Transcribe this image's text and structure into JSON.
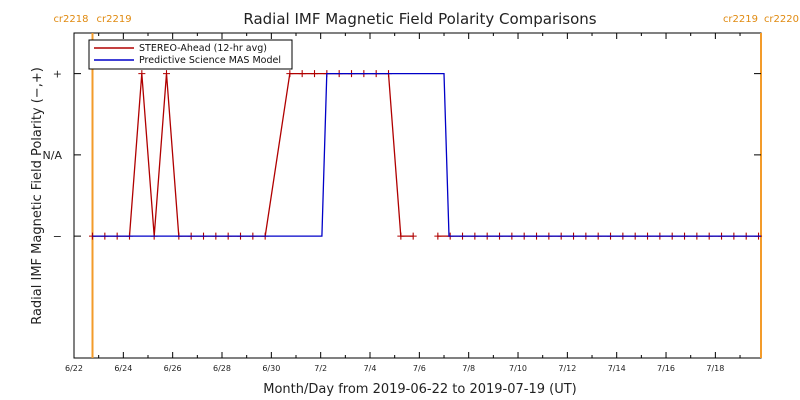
{
  "chart_data": {
    "type": "line",
    "title": "Radial IMF Magnetic Field Polarity Comparisons",
    "xlabel": "Month/Day from 2019-06-22 to 2019-07-19 (UT)",
    "ylabel": "Radial IMF Magnetic Field Polarity (−,+)",
    "x_unit": "days",
    "xlim": [
      0,
      27.85
    ],
    "ylim": [
      -1.5,
      2.5
    ],
    "y_ticks": [
      {
        "value": 0,
        "label": "−"
      },
      {
        "value": 1,
        "label": "N/A"
      },
      {
        "value": 2,
        "label": "+"
      }
    ],
    "x_ticks": [
      {
        "value": 0,
        "label": "6/22"
      },
      {
        "value": 2,
        "label": "6/24"
      },
      {
        "value": 4,
        "label": "6/26"
      },
      {
        "value": 6,
        "label": "6/28"
      },
      {
        "value": 8,
        "label": "6/30"
      },
      {
        "value": 10,
        "label": "7/2"
      },
      {
        "value": 12,
        "label": "7/4"
      },
      {
        "value": 14,
        "label": "7/6"
      },
      {
        "value": 16,
        "label": "7/8"
      },
      {
        "value": 18,
        "label": "7/10"
      },
      {
        "value": 20,
        "label": "7/12"
      },
      {
        "value": 22,
        "label": "7/14"
      },
      {
        "value": 24,
        "label": "7/16"
      },
      {
        "value": 26,
        "label": "7/18"
      }
    ],
    "carrington_markers": [
      {
        "x": 0.75,
        "left_label": "cr2218",
        "right_label": "cr2219"
      },
      {
        "x": 27.85,
        "left_label": "cr2219",
        "right_label": "cr2220"
      }
    ],
    "series": [
      {
        "name": "STEREO-Ahead (12-hr avg)",
        "color": "#b00000",
        "markers": true,
        "x": [
          0.75,
          1.25,
          1.75,
          2.25,
          2.75,
          3.25,
          3.75,
          4.25,
          4.75,
          5.25,
          5.75,
          6.25,
          6.75,
          7.25,
          7.75,
          8.75,
          9.25,
          9.75,
          13.25,
          13.75
        ],
        "y": [
          0,
          0,
          0,
          0,
          2,
          0,
          2,
          0,
          0,
          0,
          0,
          0,
          0,
          0,
          0,
          2,
          2,
          2,
          0,
          0
        ],
        "segments": [
          [
            [
              0.75,
              0
            ],
            [
              1.25,
              0
            ],
            [
              1.75,
              0
            ],
            [
              2.25,
              0
            ],
            [
              2.75,
              2
            ],
            [
              3.25,
              0
            ],
            [
              3.75,
              2
            ],
            [
              4.25,
              0
            ],
            [
              4.75,
              0
            ],
            [
              5.25,
              0
            ],
            [
              5.75,
              0
            ],
            [
              6.25,
              0
            ],
            [
              6.75,
              0
            ],
            [
              7.25,
              0
            ],
            [
              7.75,
              0
            ],
            [
              8.75,
              2
            ],
            [
              9.25,
              2
            ],
            [
              9.75,
              2
            ],
            [
              10.25,
              2
            ],
            [
              10.75,
              2
            ],
            [
              11.25,
              2
            ],
            [
              11.75,
              2
            ],
            [
              12.25,
              2
            ],
            [
              12.75,
              2
            ],
            [
              13.25,
              0
            ],
            [
              13.75,
              0
            ]
          ],
          [
            [
              14.75,
              0
            ],
            [
              15.25,
              0
            ],
            [
              15.75,
              0
            ],
            [
              16.25,
              0
            ],
            [
              16.75,
              0
            ],
            [
              17.25,
              0
            ],
            [
              17.75,
              0
            ],
            [
              18.25,
              0
            ],
            [
              18.75,
              0
            ],
            [
              19.25,
              0
            ],
            [
              19.75,
              0
            ],
            [
              20.25,
              0
            ],
            [
              20.75,
              0
            ],
            [
              21.25,
              0
            ],
            [
              21.75,
              0
            ],
            [
              22.25,
              0
            ],
            [
              22.75,
              0
            ],
            [
              23.25,
              0
            ],
            [
              23.75,
              0
            ],
            [
              24.25,
              0
            ],
            [
              24.75,
              0
            ],
            [
              25.25,
              0
            ],
            [
              25.75,
              0
            ],
            [
              26.25,
              0
            ],
            [
              26.75,
              0
            ],
            [
              27.25,
              0
            ],
            [
              27.75,
              0
            ]
          ]
        ]
      },
      {
        "name": "Predictive Science MAS Model",
        "color": "#0000c8",
        "markers": false,
        "segments": [
          [
            [
              0.75,
              0
            ],
            [
              10.05,
              0
            ],
            [
              10.25,
              2
            ],
            [
              15.0,
              2
            ],
            [
              15.2,
              0
            ],
            [
              27.85,
              0
            ]
          ]
        ]
      }
    ],
    "legend": {
      "position": "top-left"
    },
    "grid": false
  }
}
